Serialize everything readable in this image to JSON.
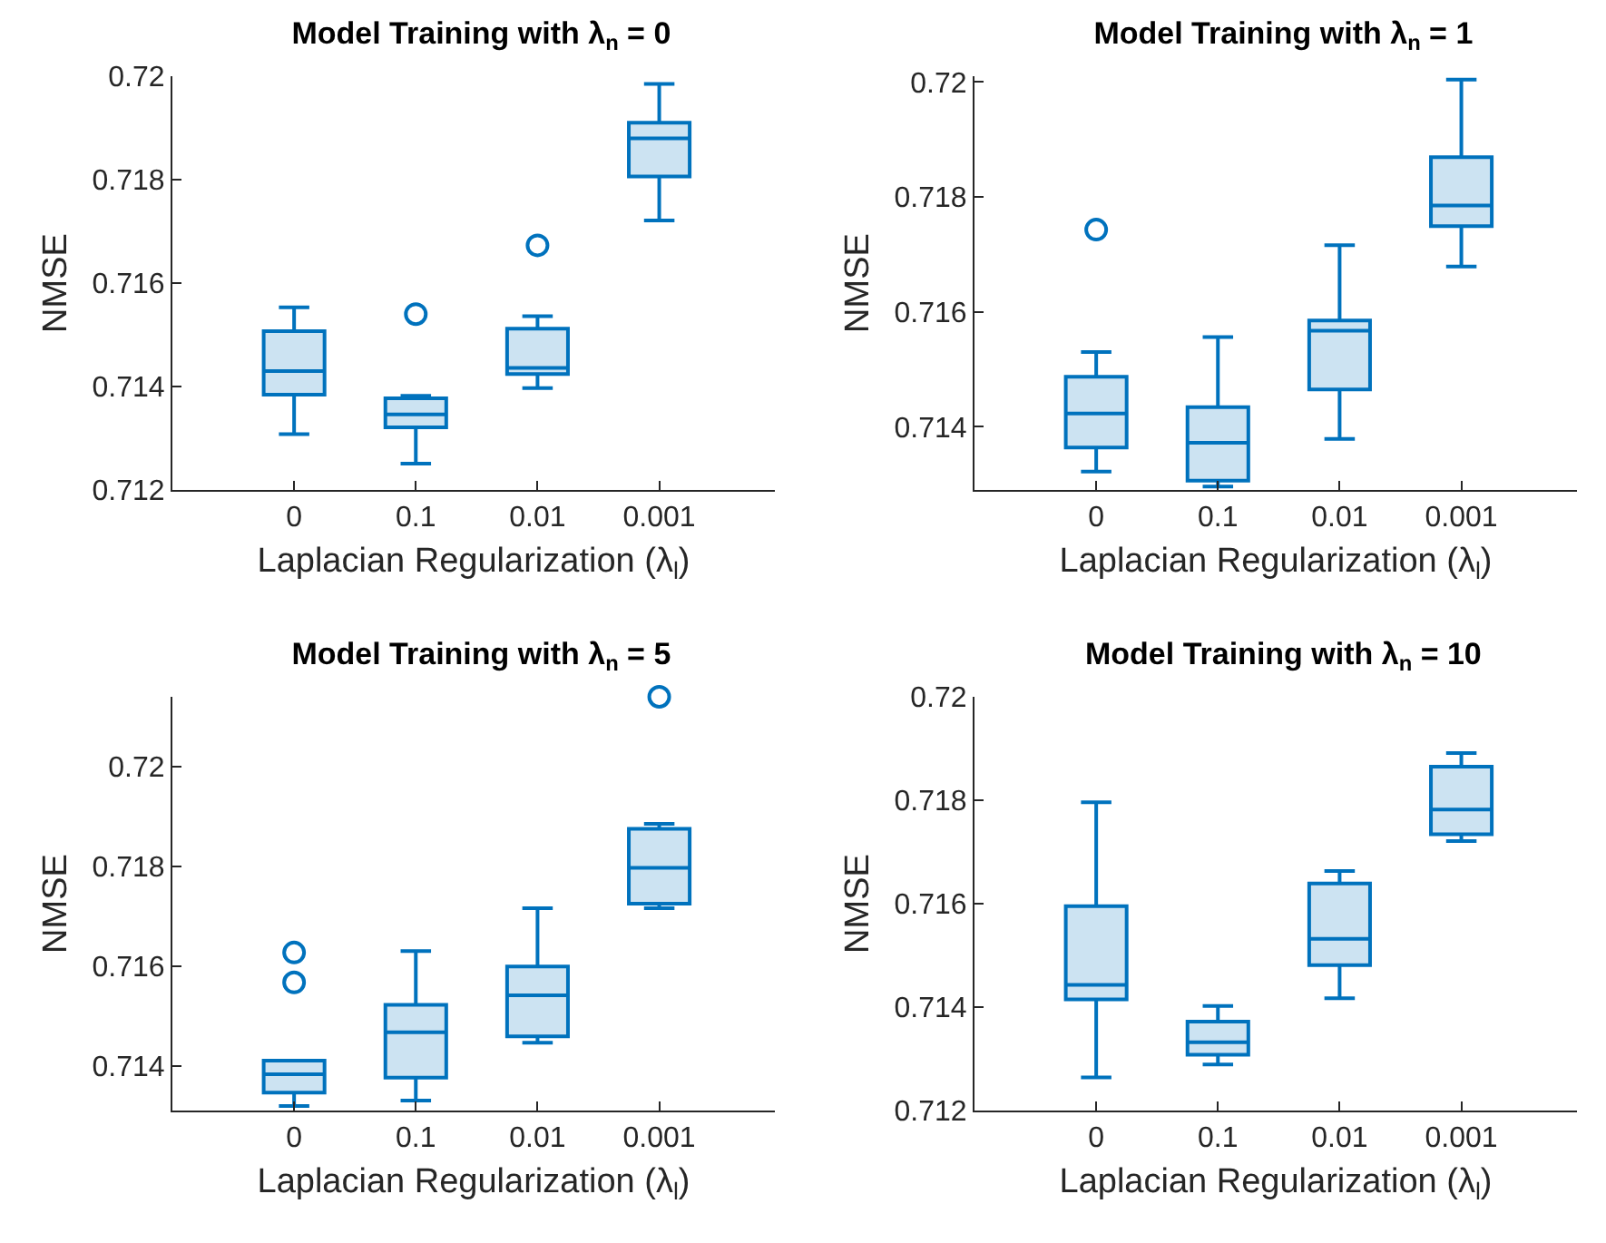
{
  "chart_data": [
    {
      "type": "box",
      "title": "Model Training with λ$_{n}$ = 0",
      "xlabel": "Laplacian Regularization (λ$_{l}$)",
      "ylabel": "NMSE",
      "categories": [
        "0",
        "0.1",
        "0.01",
        "0.001"
      ],
      "color": "#0072bd",
      "ylim": [
        0.712,
        0.72
      ],
      "yticks": [
        0.712,
        0.714,
        0.716,
        0.718,
        0.72
      ],
      "grid": false,
      "boxes": [
        {
          "low": 0.71308,
          "q1": 0.71384,
          "median": 0.7143,
          "q3": 0.71507,
          "high": 0.71553
        },
        {
          "low": 0.71251,
          "q1": 0.71321,
          "median": 0.71346,
          "q3": 0.71377,
          "high": 0.71382,
          "outliers": [
            0.7154
          ]
        },
        {
          "low": 0.71397,
          "q1": 0.71424,
          "median": 0.71436,
          "q3": 0.71512,
          "high": 0.71536,
          "outliers": [
            0.71673
          ]
        },
        {
          "low": 0.71721,
          "q1": 0.71806,
          "median": 0.7188,
          "q3": 0.7191,
          "high": 0.71985
        }
      ]
    },
    {
      "type": "box",
      "title": "Model Training with λ$_{n}$ = 1",
      "xlabel": "Laplacian Regularization (λ$_{l}$)",
      "ylabel": "NMSE",
      "categories": [
        "0",
        "0.1",
        "0.01",
        "0.001"
      ],
      "color": "#0072bd",
      "ylim": [
        0.7129,
        0.7201
      ],
      "yticks": [
        0.714,
        0.716,
        0.718,
        0.72
      ],
      "grid": false,
      "boxes": [
        {
          "low": 0.71322,
          "q1": 0.71364,
          "median": 0.71423,
          "q3": 0.71487,
          "high": 0.7153,
          "outliers": [
            0.71743
          ]
        },
        {
          "low": 0.71296,
          "q1": 0.71306,
          "median": 0.71372,
          "q3": 0.71434,
          "high": 0.71556
        },
        {
          "low": 0.71379,
          "q1": 0.71465,
          "median": 0.71567,
          "q3": 0.71585,
          "high": 0.71716
        },
        {
          "low": 0.71679,
          "q1": 0.71749,
          "median": 0.71785,
          "q3": 0.71869,
          "high": 0.72004
        }
      ]
    },
    {
      "type": "box",
      "title": "Model Training with λ$_{n}$ = 5",
      "xlabel": "Laplacian Regularization (λ$_{l}$)",
      "ylabel": "NMSE",
      "categories": [
        "0",
        "0.1",
        "0.01",
        "0.001"
      ],
      "color": "#0072bd",
      "ylim": [
        0.7131,
        0.7214
      ],
      "yticks": [
        0.714,
        0.716,
        0.718,
        0.72
      ],
      "grid": false,
      "boxes": [
        {
          "low": 0.71319,
          "q1": 0.71346,
          "median": 0.71383,
          "q3": 0.7141,
          "high": 0.7141,
          "outliers": [
            0.71627,
            0.71567
          ]
        },
        {
          "low": 0.7133,
          "q1": 0.71376,
          "median": 0.71467,
          "q3": 0.71522,
          "high": 0.7163
        },
        {
          "low": 0.71446,
          "q1": 0.71459,
          "median": 0.71541,
          "q3": 0.71599,
          "high": 0.71716
        },
        {
          "low": 0.71716,
          "q1": 0.71725,
          "median": 0.71797,
          "q3": 0.71875,
          "high": 0.71885,
          "outliers": [
            0.7214
          ]
        }
      ]
    },
    {
      "type": "box",
      "title": "Model Training with λ$_{n}$ = 10",
      "xlabel": "Laplacian Regularization (λ$_{l}$)",
      "ylabel": "NMSE",
      "categories": [
        "0",
        "0.1",
        "0.01",
        "0.001"
      ],
      "color": "#0072bd",
      "ylim": [
        0.712,
        0.72
      ],
      "yticks": [
        0.712,
        0.714,
        0.716,
        0.718,
        0.72
      ],
      "grid": false,
      "boxes": [
        {
          "low": 0.71264,
          "q1": 0.71415,
          "median": 0.71443,
          "q3": 0.71595,
          "high": 0.71796
        },
        {
          "low": 0.71289,
          "q1": 0.71308,
          "median": 0.71332,
          "q3": 0.71372,
          "high": 0.71402
        },
        {
          "low": 0.71417,
          "q1": 0.71481,
          "median": 0.71532,
          "q3": 0.71639,
          "high": 0.71663
        },
        {
          "low": 0.71721,
          "q1": 0.71734,
          "median": 0.71782,
          "q3": 0.71865,
          "high": 0.71891
        }
      ]
    }
  ]
}
